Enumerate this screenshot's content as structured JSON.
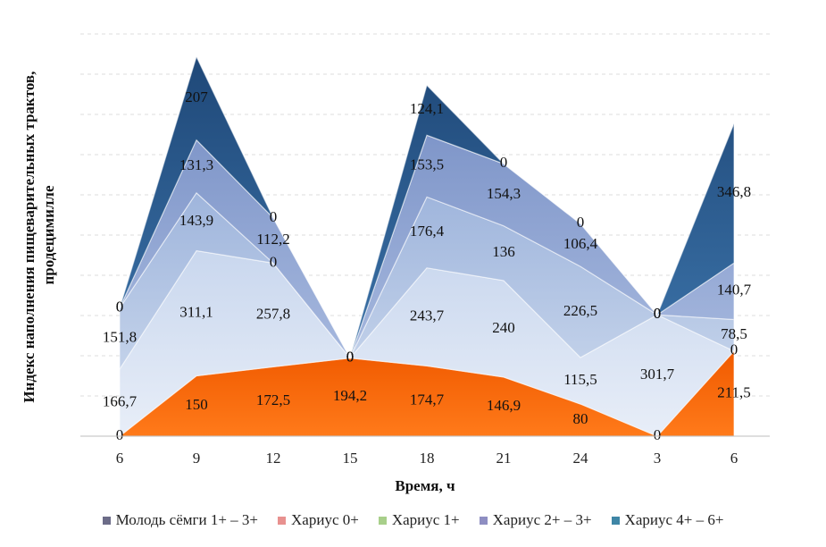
{
  "chart_data": {
    "type": "area",
    "stacked": true,
    "x": [
      "6",
      "9",
      "12",
      "15",
      "18",
      "21",
      "24",
      "3",
      "6"
    ],
    "xlabel": "Время, ч",
    "ylabel_line1": "Индекс наполнения пищеварительных трактов,",
    "ylabel_line2": "продецимилле",
    "ylim": [
      0,
      1000
    ],
    "grid": true,
    "legend_position": "bottom",
    "series": [
      {
        "name": "Молодь сёмги 1+ – 3+",
        "color": "#ff6600",
        "values": [
          0,
          150,
          172.5,
          194.2,
          174.7,
          146.9,
          80,
          0,
          211.5
        ]
      },
      {
        "name": "Хариус 0+",
        "color": "#dce6f4",
        "values": [
          166.7,
          311.1,
          257.8,
          0,
          243.7,
          240,
          115.5,
          301.7,
          0
        ]
      },
      {
        "name": "Хариус 1+",
        "color": "#a9bfe0",
        "values": [
          151.8,
          143.9,
          0,
          0,
          176.4,
          136,
          226.5,
          0,
          78.5
        ]
      },
      {
        "name": "Хариус 2+ – 3+",
        "color": "#8aa3d2",
        "values": [
          0,
          131.3,
          112.2,
          0,
          153.5,
          154.3,
          106.4,
          0,
          140.7
        ]
      },
      {
        "name": "Хариус 4+ – 6+",
        "color": "#2d5b8e",
        "values": [
          0,
          207,
          0,
          0,
          124.1,
          0,
          0,
          0,
          346.8
        ]
      }
    ],
    "legend_swatches": [
      "#6c6c88",
      "#e8918f",
      "#a8cf8a",
      "#8e8ec2",
      "#3f86a6"
    ]
  }
}
